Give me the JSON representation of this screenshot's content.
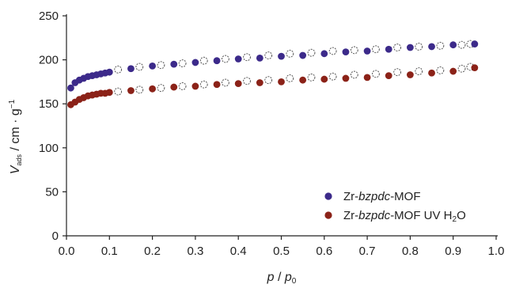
{
  "chart_data": {
    "type": "scatter",
    "xlim": [
      0.0,
      1.0
    ],
    "ylim": [
      0,
      250
    ],
    "x_ticks": [
      "0.0",
      "0.1",
      "0.2",
      "0.3",
      "0.4",
      "0.5",
      "0.6",
      "0.7",
      "0.8",
      "0.9",
      "1.0"
    ],
    "y_ticks": [
      "0",
      "50",
      "100",
      "150",
      "200",
      "250"
    ],
    "xlabel": {
      "p": "p",
      "sep": " / ",
      "p0": "p",
      "p0_sub": "0"
    },
    "ylabel": {
      "v": "V",
      "v_sub": "ads",
      "unit": " / cm · g",
      "unit_sup": "−1"
    },
    "legend_position": "bottom-right",
    "grid": false,
    "series": [
      {
        "name_parts": {
          "a": "Zr-",
          "b": "bzpdc",
          "c": "-MOF",
          "d": "",
          "d_sub": "",
          "e": ""
        },
        "color": "#3c2a8a",
        "adsorption": [
          [
            0.01,
            168
          ],
          [
            0.02,
            174
          ],
          [
            0.03,
            177
          ],
          [
            0.04,
            179
          ],
          [
            0.05,
            181
          ],
          [
            0.06,
            182
          ],
          [
            0.07,
            183
          ],
          [
            0.08,
            184
          ],
          [
            0.09,
            185
          ],
          [
            0.1,
            186
          ],
          [
            0.15,
            190
          ],
          [
            0.2,
            193
          ],
          [
            0.25,
            195
          ],
          [
            0.3,
            197
          ],
          [
            0.35,
            199
          ],
          [
            0.4,
            201
          ],
          [
            0.45,
            202
          ],
          [
            0.5,
            204
          ],
          [
            0.55,
            205
          ],
          [
            0.6,
            207
          ],
          [
            0.65,
            209
          ],
          [
            0.7,
            210
          ],
          [
            0.75,
            212
          ],
          [
            0.8,
            214
          ],
          [
            0.85,
            215
          ],
          [
            0.9,
            217
          ],
          [
            0.95,
            218
          ]
        ],
        "desorption": [
          [
            0.12,
            189
          ],
          [
            0.17,
            192
          ],
          [
            0.22,
            194
          ],
          [
            0.27,
            196
          ],
          [
            0.32,
            199
          ],
          [
            0.37,
            201
          ],
          [
            0.42,
            203
          ],
          [
            0.47,
            205
          ],
          [
            0.52,
            207
          ],
          [
            0.57,
            208
          ],
          [
            0.62,
            210
          ],
          [
            0.67,
            211
          ],
          [
            0.72,
            212
          ],
          [
            0.77,
            214
          ],
          [
            0.82,
            215
          ],
          [
            0.87,
            216
          ],
          [
            0.92,
            217
          ],
          [
            0.94,
            218
          ]
        ]
      },
      {
        "name_parts": {
          "a": "Zr-",
          "b": "bzpdc",
          "c": "-MOF UV H",
          "d": "",
          "d_sub": "2",
          "e": "O"
        },
        "color": "#8b2218",
        "adsorption": [
          [
            0.01,
            149
          ],
          [
            0.02,
            152
          ],
          [
            0.03,
            155
          ],
          [
            0.04,
            157
          ],
          [
            0.05,
            159
          ],
          [
            0.06,
            160
          ],
          [
            0.07,
            161
          ],
          [
            0.08,
            162
          ],
          [
            0.09,
            162
          ],
          [
            0.1,
            163
          ],
          [
            0.15,
            165
          ],
          [
            0.2,
            167
          ],
          [
            0.25,
            169
          ],
          [
            0.3,
            170
          ],
          [
            0.35,
            172
          ],
          [
            0.4,
            173
          ],
          [
            0.45,
            174
          ],
          [
            0.5,
            175
          ],
          [
            0.55,
            177
          ],
          [
            0.6,
            178
          ],
          [
            0.65,
            179
          ],
          [
            0.7,
            180
          ],
          [
            0.75,
            182
          ],
          [
            0.8,
            183
          ],
          [
            0.85,
            185
          ],
          [
            0.9,
            187
          ],
          [
            0.95,
            191
          ]
        ],
        "desorption": [
          [
            0.12,
            164
          ],
          [
            0.17,
            166
          ],
          [
            0.22,
            168
          ],
          [
            0.27,
            170
          ],
          [
            0.32,
            172
          ],
          [
            0.37,
            174
          ],
          [
            0.42,
            176
          ],
          [
            0.47,
            177
          ],
          [
            0.52,
            179
          ],
          [
            0.57,
            180
          ],
          [
            0.62,
            181
          ],
          [
            0.67,
            183
          ],
          [
            0.72,
            184
          ],
          [
            0.77,
            186
          ],
          [
            0.82,
            187
          ],
          [
            0.87,
            188
          ],
          [
            0.92,
            190
          ],
          [
            0.94,
            192
          ]
        ]
      }
    ]
  }
}
